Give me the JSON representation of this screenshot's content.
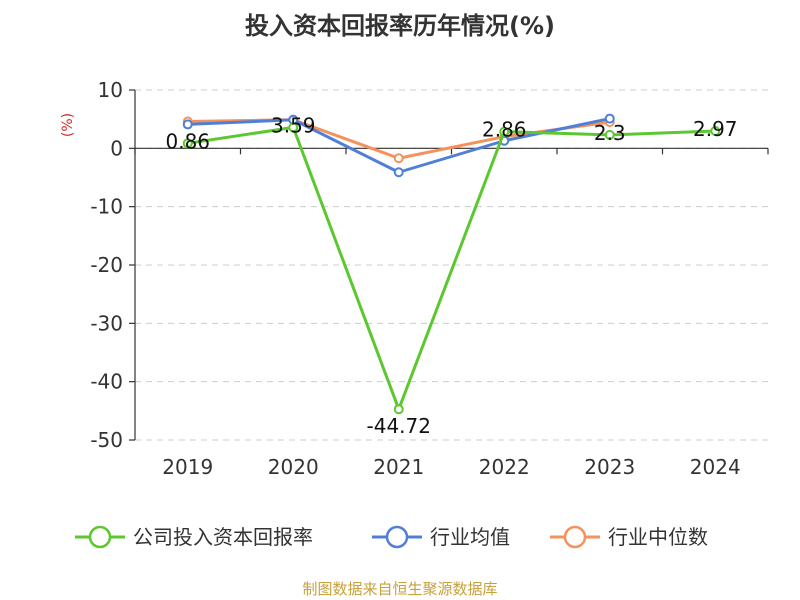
{
  "chart_data": {
    "type": "line",
    "title": "投入资本回报率历年情况(%)",
    "ylabel": "(%)",
    "xlabel": "",
    "categories": [
      "2019",
      "2020",
      "2021",
      "2022",
      "2023",
      "2024"
    ],
    "ylim": [
      -50,
      10
    ],
    "yticks": [
      10,
      0,
      -10,
      -20,
      -30,
      -40,
      -50
    ],
    "grid": true,
    "legend_position": "bottom",
    "series": [
      {
        "name": "公司投入资本回报率",
        "color": "#5cc72e",
        "values": [
          0.86,
          3.59,
          -44.72,
          2.86,
          2.3,
          2.97
        ],
        "labels": [
          "0.86",
          "3.59",
          "-44.72",
          "2.86",
          "2.3",
          "2.97"
        ]
      },
      {
        "name": "行业均值",
        "color": "#4f7fd6",
        "values": [
          4.1,
          4.9,
          -4.1,
          1.3,
          5.1,
          null
        ]
      },
      {
        "name": "行业中位数",
        "color": "#f5925c",
        "values": [
          4.6,
          4.9,
          -1.7,
          2.0,
          4.5,
          null
        ]
      }
    ]
  },
  "footer": {
    "source": "制图数据来自恒生聚源数据库"
  }
}
